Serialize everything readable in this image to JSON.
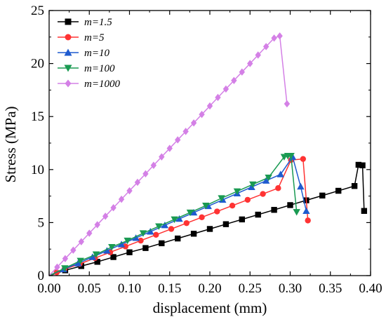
{
  "chart_data": {
    "type": "line",
    "xlabel": "displacement (mm)",
    "ylabel": "Stress (MPa)",
    "xlim": [
      0.0,
      0.4
    ],
    "ylim": [
      0,
      25
    ],
    "xticks": [
      "0.00",
      "0.05",
      "0.10",
      "0.15",
      "0.20",
      "0.25",
      "0.30",
      "0.35",
      "0.40"
    ],
    "yticks": [
      "0",
      "5",
      "10",
      "15",
      "20",
      "25"
    ],
    "grid": false,
    "legend_position": "top-left",
    "series": [
      {
        "name": "m=1.5",
        "color": "#000000",
        "marker": "square",
        "x": [
          0.0,
          0.02,
          0.04,
          0.06,
          0.08,
          0.1,
          0.12,
          0.14,
          0.16,
          0.18,
          0.2,
          0.22,
          0.24,
          0.26,
          0.28,
          0.3,
          0.32,
          0.34,
          0.36,
          0.38,
          0.385,
          0.39,
          0.392
        ],
        "y": [
          0,
          0.5,
          0.9,
          1.3,
          1.75,
          2.2,
          2.6,
          3.05,
          3.5,
          3.95,
          4.4,
          4.85,
          5.3,
          5.75,
          6.2,
          6.65,
          7.1,
          7.55,
          8.0,
          8.45,
          10.45,
          10.4,
          6.1
        ]
      },
      {
        "name": "m=5",
        "color": "#ff3333",
        "marker": "circle",
        "x": [
          0.0,
          0.0095,
          0.019,
          0.038,
          0.057,
          0.076,
          0.095,
          0.114,
          0.133,
          0.152,
          0.171,
          0.19,
          0.209,
          0.228,
          0.247,
          0.266,
          0.285,
          0.301,
          0.316,
          0.322
        ],
        "y": [
          0,
          0.3,
          0.6,
          1.1,
          1.65,
          2.2,
          2.75,
          3.3,
          3.85,
          4.4,
          4.95,
          5.5,
          6.05,
          6.6,
          7.15,
          7.7,
          8.25,
          10.9,
          11.0,
          5.2
        ]
      },
      {
        "name": "m=10",
        "color": "#1f5bcf",
        "marker": "triangle-up",
        "x": [
          0.0,
          0.018,
          0.036,
          0.054,
          0.072,
          0.09,
          0.108,
          0.126,
          0.144,
          0.162,
          0.18,
          0.198,
          0.216,
          0.234,
          0.252,
          0.27,
          0.288,
          0.303,
          0.313,
          0.32
        ],
        "y": [
          0,
          0.6,
          1.15,
          1.75,
          2.35,
          2.95,
          3.55,
          4.15,
          4.75,
          5.35,
          5.95,
          6.55,
          7.15,
          7.75,
          8.35,
          8.95,
          9.55,
          11.2,
          8.4,
          6.1
        ]
      },
      {
        "name": "m=100",
        "color": "#1a9a52",
        "marker": "triangle-down",
        "x": [
          0.0,
          0.0195,
          0.039,
          0.0585,
          0.078,
          0.0975,
          0.117,
          0.1365,
          0.156,
          0.1755,
          0.195,
          0.2145,
          0.234,
          0.2535,
          0.273,
          0.2925,
          0.297,
          0.301,
          0.308
        ],
        "y": [
          0,
          0.7,
          1.4,
          2.0,
          2.7,
          3.3,
          4.0,
          4.65,
          5.3,
          5.95,
          6.6,
          7.3,
          7.95,
          8.6,
          9.25,
          11.2,
          11.3,
          11.3,
          6.0
        ]
      },
      {
        "name": "m=1000",
        "color": "#d480e6",
        "marker": "diamond",
        "x": [
          0.0,
          0.01,
          0.02,
          0.03,
          0.04,
          0.05,
          0.06,
          0.07,
          0.08,
          0.09,
          0.1,
          0.11,
          0.12,
          0.13,
          0.14,
          0.15,
          0.16,
          0.17,
          0.18,
          0.19,
          0.2,
          0.21,
          0.22,
          0.23,
          0.24,
          0.25,
          0.26,
          0.27,
          0.28,
          0.287,
          0.296
        ],
        "y": [
          0,
          0.8,
          1.6,
          2.4,
          3.2,
          4.0,
          4.8,
          5.6,
          6.4,
          7.2,
          8.0,
          8.8,
          9.6,
          10.4,
          11.2,
          12.0,
          12.8,
          13.6,
          14.4,
          15.2,
          16.0,
          16.8,
          17.6,
          18.4,
          19.2,
          20.0,
          20.8,
          21.6,
          22.4,
          22.6,
          16.2
        ]
      }
    ]
  }
}
